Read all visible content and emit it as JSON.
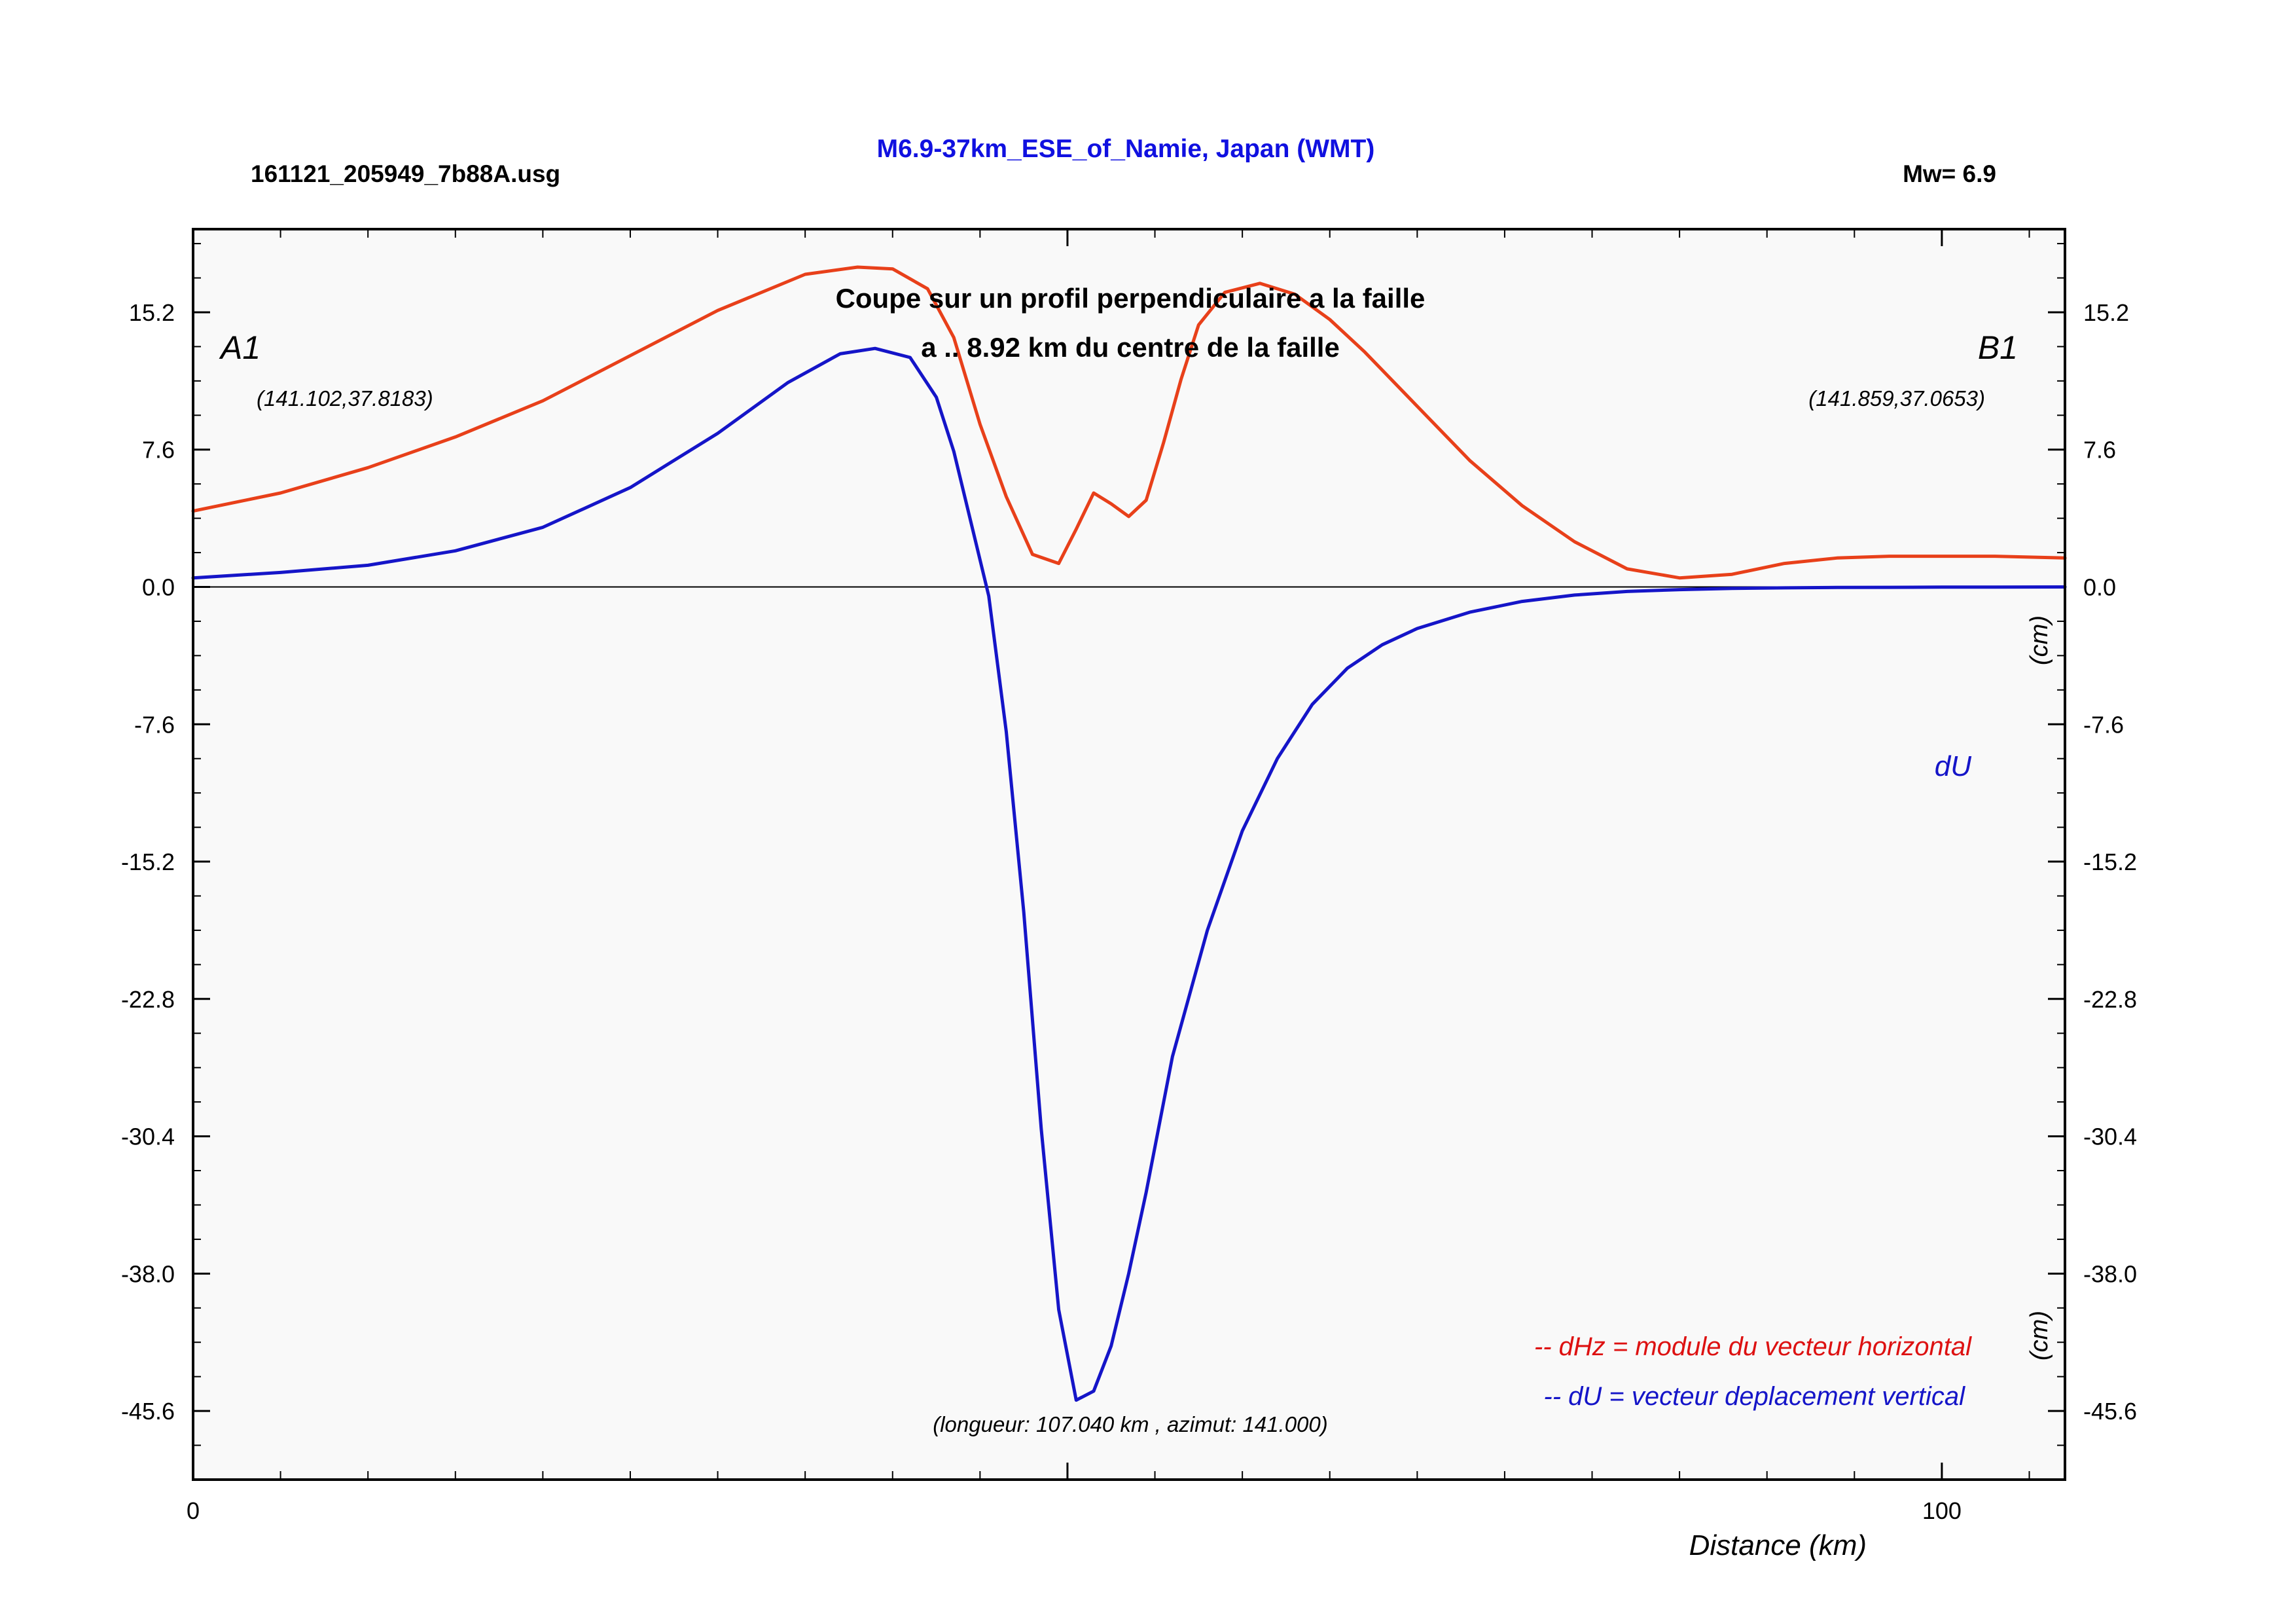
{
  "header": {
    "filename": "161121_205949_7b88A.usg",
    "title": "M6.9-37km_ESE_of_Namie, Japan (WMT)",
    "magnitude": "Mw= 6.9"
  },
  "colors": {
    "title": "#1010e0",
    "dHz": "#e8401a",
    "dU": "#1515c8",
    "legend_dHz": "#dd1111",
    "legend_dU": "#1515c8",
    "plot_bg": "#f9f9f9",
    "axis": "#000000"
  },
  "annotations": {
    "subtitle_line1": "Coupe sur un profil perpendiculaire a la faille",
    "subtitle_line2": "a .. 8.92 km du centre de la faille",
    "point_a_label": "A1",
    "point_a_coords": "(141.102,37.8183)",
    "point_b_label": "B1",
    "point_b_coords": "(141.859,37.0653)",
    "du_label": "dU",
    "unit_upper": "(cm)",
    "unit_lower": "(cm)",
    "profile_info": "(longueur: 107.040 km , azimut: 141.000)",
    "legend_dHz": "-- dHz = module du vecteur horizontal",
    "legend_dU": "-- dU =  vecteur deplacement vertical"
  },
  "chart_data": {
    "type": "line",
    "xlabel": "Distance (km)",
    "ylabel": "(cm)",
    "xlim": [
      0,
      107.04
    ],
    "ylim": [
      -49.4,
      19.8
    ],
    "x_ticks": [
      0,
      100
    ],
    "x_tick_labels": [
      "0",
      "100"
    ],
    "y_ticks": [
      15.2,
      7.6,
      0.0,
      -7.6,
      -15.2,
      -22.8,
      -30.4,
      -38.0,
      -45.6
    ],
    "y_tick_labels": [
      "15.2",
      "7.6",
      "0.0",
      "-7.6",
      "-15.2",
      "-22.8",
      "-30.4",
      "-38.0",
      "-45.6"
    ],
    "grid": false,
    "zero_line": true,
    "legend_position": "bottom-right",
    "series": [
      {
        "name": "dHz",
        "x": [
          0,
          5,
          10,
          15,
          20,
          25,
          30,
          35,
          38,
          40,
          42,
          43.5,
          45,
          46.5,
          48,
          49.5,
          50.5,
          51.5,
          52.5,
          53.5,
          54.5,
          55.5,
          56.5,
          57.5,
          59,
          61,
          63,
          65,
          67,
          70,
          73,
          76,
          79,
          82,
          85,
          88,
          91,
          94,
          97,
          100,
          103,
          107.04
        ],
        "values": [
          4.2,
          5.2,
          6.6,
          8.3,
          10.3,
          12.8,
          15.3,
          17.3,
          17.7,
          17.6,
          16.5,
          13.8,
          9.0,
          5.0,
          1.8,
          1.3,
          3.2,
          5.2,
          4.6,
          3.9,
          4.8,
          8.0,
          11.5,
          14.5,
          16.3,
          16.8,
          16.2,
          14.8,
          13.0,
          10.0,
          7.0,
          4.5,
          2.5,
          1.0,
          0.5,
          0.7,
          1.3,
          1.6,
          1.7,
          1.7,
          1.7,
          1.6
        ]
      },
      {
        "name": "dU",
        "x": [
          0,
          5,
          10,
          15,
          20,
          25,
          30,
          34,
          37,
          39,
          41,
          42.5,
          43.5,
          44.5,
          45.5,
          46.5,
          47.5,
          48.5,
          49.5,
          50.5,
          51.5,
          52.5,
          53.5,
          54.5,
          56,
          58,
          60,
          62,
          64,
          66,
          68,
          70,
          73,
          76,
          79,
          82,
          85,
          88,
          91,
          94,
          97,
          100,
          103,
          107.04
        ],
        "values": [
          0.5,
          0.8,
          1.2,
          2.0,
          3.3,
          5.5,
          8.5,
          11.3,
          12.9,
          13.2,
          12.7,
          10.5,
          7.5,
          3.5,
          -0.5,
          -8.0,
          -18.0,
          -30.0,
          -40.0,
          -45.0,
          -44.5,
          -42.0,
          -38.0,
          -33.5,
          -26.0,
          -19.0,
          -13.5,
          -9.5,
          -6.5,
          -4.5,
          -3.2,
          -2.3,
          -1.4,
          -0.8,
          -0.45,
          -0.25,
          -0.15,
          -0.08,
          -0.05,
          -0.03,
          -0.02,
          -0.01,
          -0.01,
          0.0
        ]
      }
    ]
  }
}
